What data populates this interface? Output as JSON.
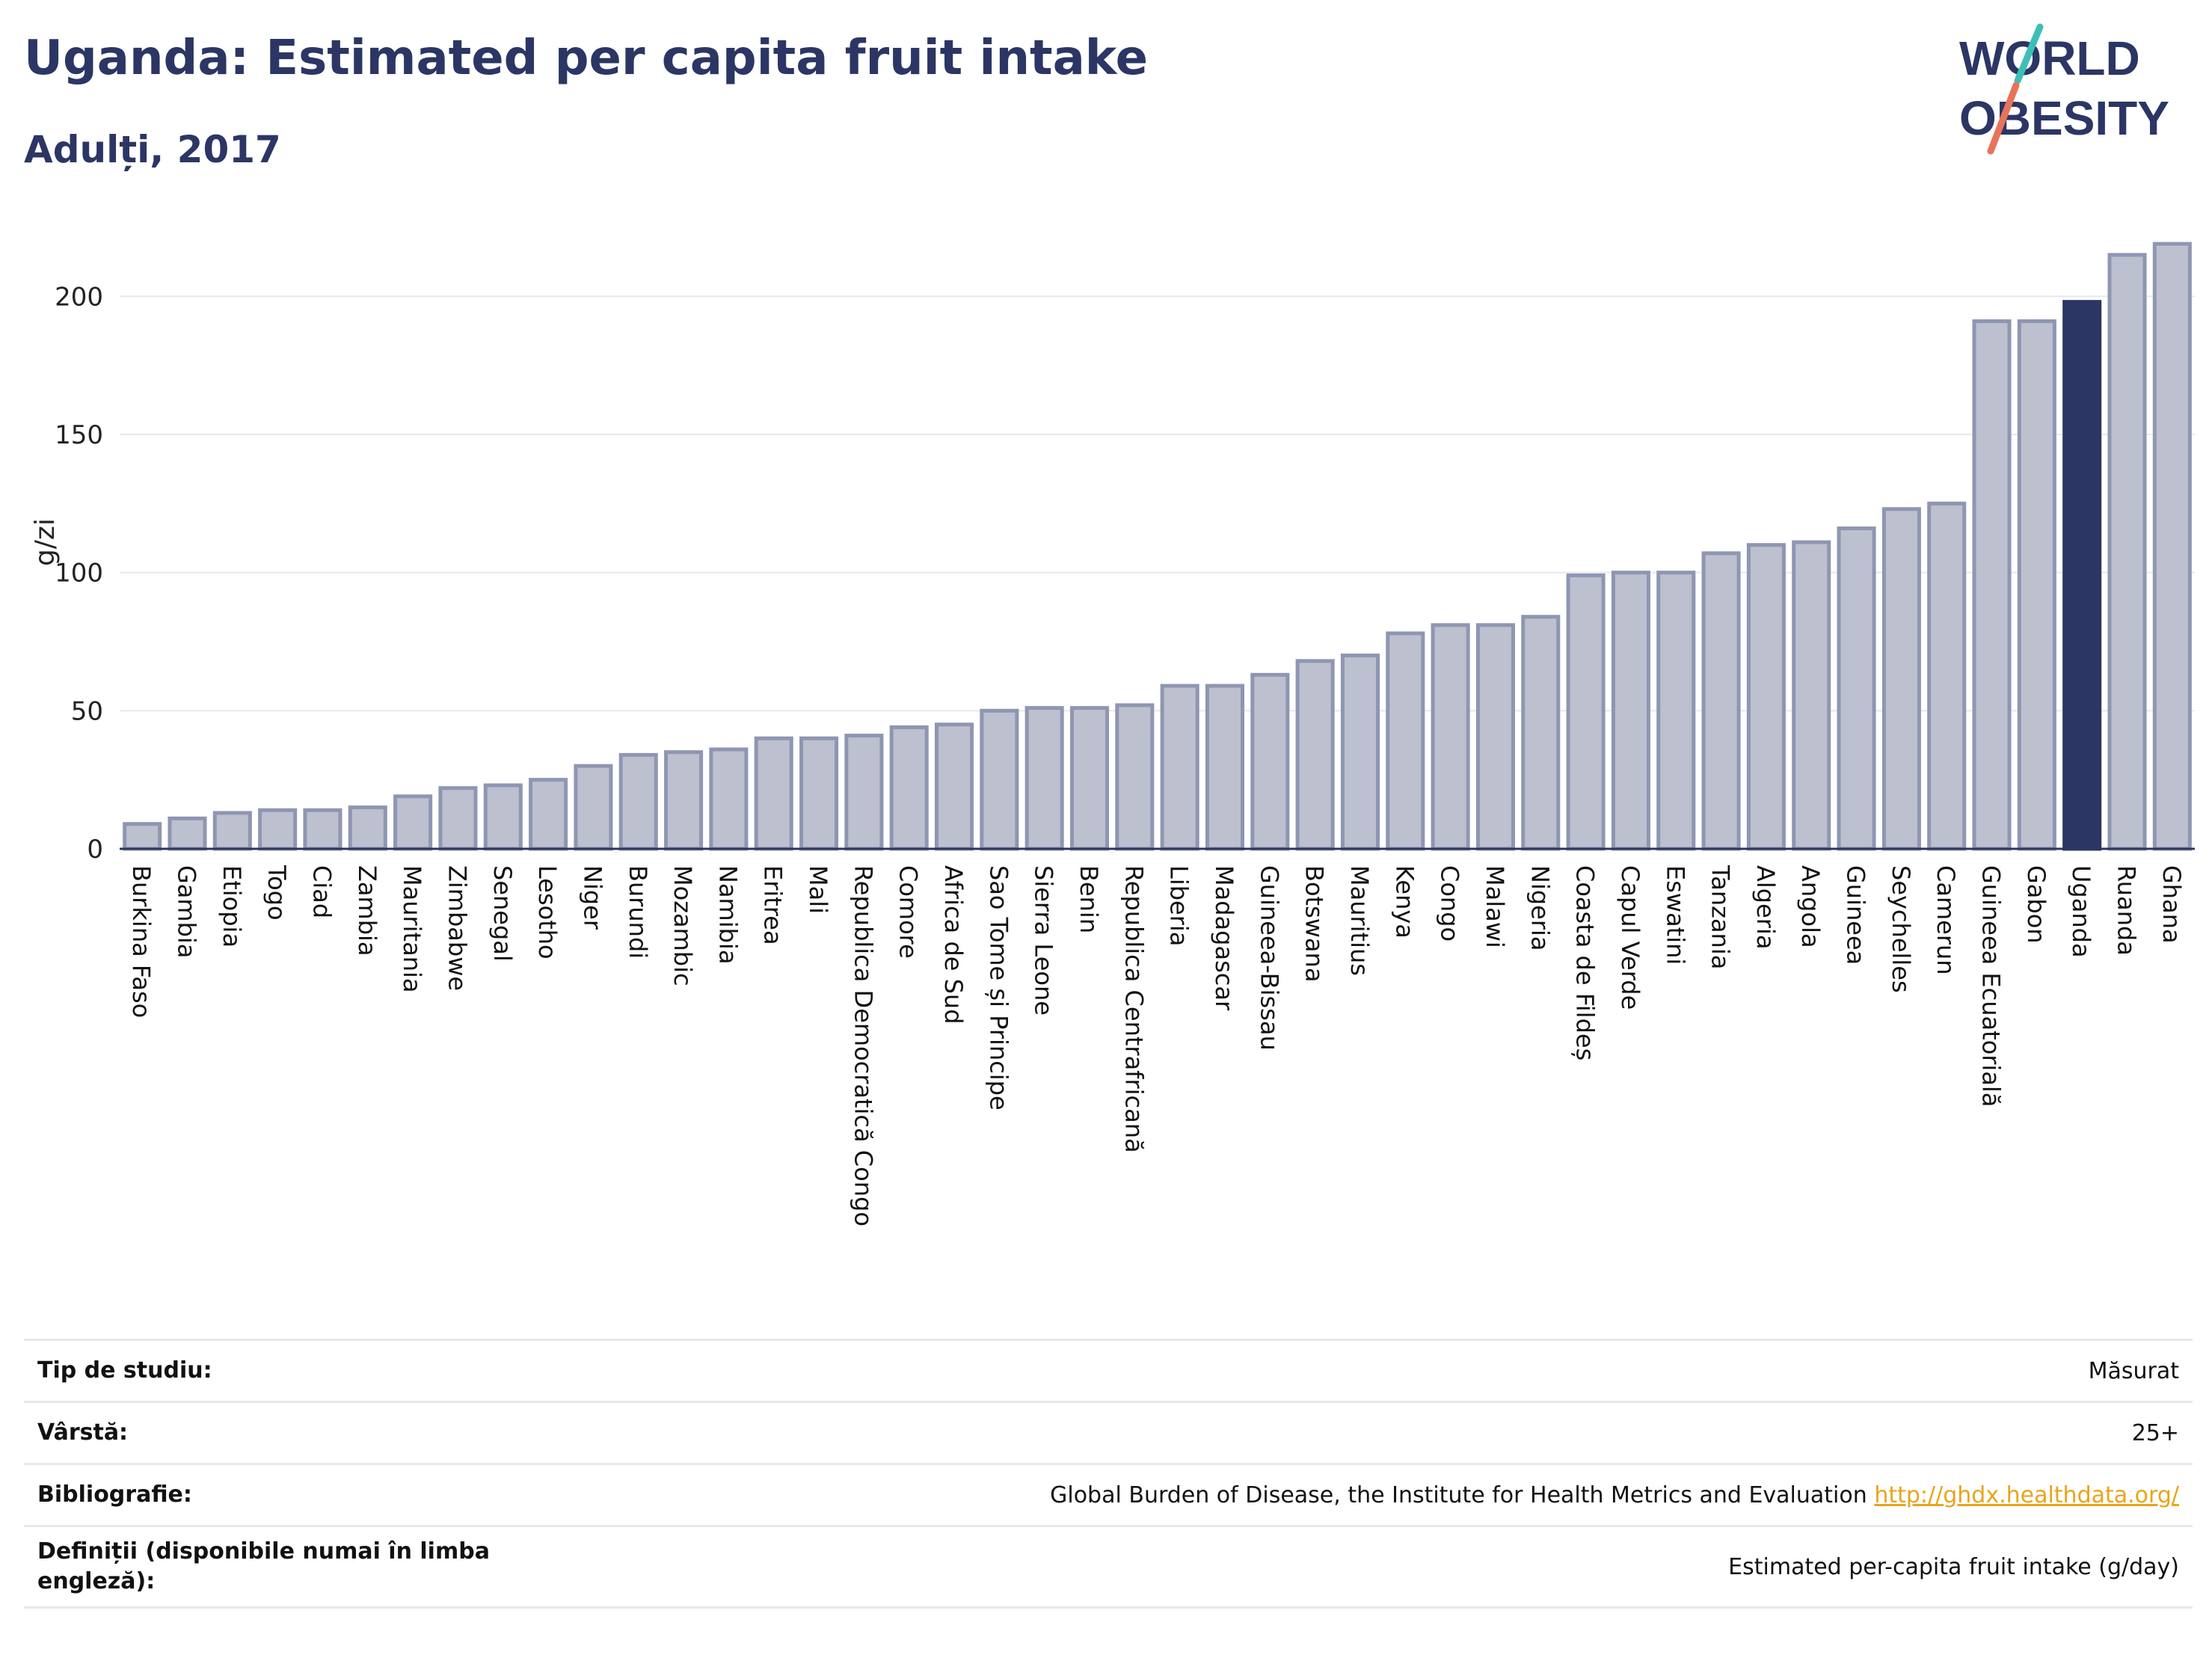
{
  "header": {
    "title": "Uganda: Estimated per capita fruit intake",
    "subtitle": "Adulți, 2017",
    "logo_line1": "WORLD",
    "logo_line2": "OBESITY"
  },
  "colors": {
    "bar": "#bcc0cf",
    "bar_border": "#8f96b1",
    "highlight": "#2b3664",
    "grid": "#e6e8ef",
    "text": "#2b3664",
    "link": "#e7a51b",
    "logo_teal": "#3dbfb7",
    "logo_coral": "#e8735b"
  },
  "chart_data": {
    "type": "bar",
    "title": "Uganda: Estimated per capita fruit intake",
    "subtitle": "Adulți, 2017",
    "ylabel": "g/zi",
    "xlabel": "",
    "ylim": [
      0,
      222
    ],
    "yticks": [
      0,
      50,
      100,
      150,
      200
    ],
    "grid": true,
    "highlight": "Uganda",
    "categories": [
      "Burkina Faso",
      "Gambia",
      "Etiopia",
      "Togo",
      "Ciad",
      "Zambia",
      "Mauritania",
      "Zimbabwe",
      "Senegal",
      "Lesotho",
      "Niger",
      "Burundi",
      "Mozambic",
      "Namibia",
      "Eritrea",
      "Mali",
      "Republica Democratică Congo",
      "Comore",
      "Africa de Sud",
      "Sao Tome și Principe",
      "Sierra Leone",
      "Benin",
      "Republica Centrafricană",
      "Liberia",
      "Madagascar",
      "Guineea-Bissau",
      "Botswana",
      "Mauritius",
      "Kenya",
      "Congo",
      "Malawi",
      "Nigeria",
      "Coasta de Fildeș",
      "Capul Verde",
      "Eswatini",
      "Tanzania",
      "Algeria",
      "Angola",
      "Guineea",
      "Seychelles",
      "Camerun",
      "Guineea Ecuatorială",
      "Gabon",
      "Uganda",
      "Ruanda",
      "Ghana"
    ],
    "values": [
      9,
      11,
      13,
      14,
      14,
      15,
      19,
      22,
      23,
      25,
      30,
      34,
      35,
      36,
      40,
      40,
      41,
      44,
      45,
      50,
      51,
      51,
      52,
      59,
      59,
      63,
      68,
      70,
      78,
      81,
      81,
      84,
      99,
      100,
      100,
      107,
      110,
      111,
      116,
      123,
      125,
      191,
      191,
      198,
      215,
      219
    ]
  },
  "info": [
    {
      "label": "Tip de studiu:",
      "value": "Măsurat"
    },
    {
      "label": "Vârstă:",
      "value": "25+"
    },
    {
      "label": "Bibliografie:",
      "value": "Global Burden of Disease, the Institute for Health Metrics and Evaluation",
      "link": "http://ghdx.healthdata.org/"
    },
    {
      "label": "Definiții (disponibile numai în limba engleză):",
      "value": "Estimated per-capita fruit intake (g/day)"
    }
  ]
}
